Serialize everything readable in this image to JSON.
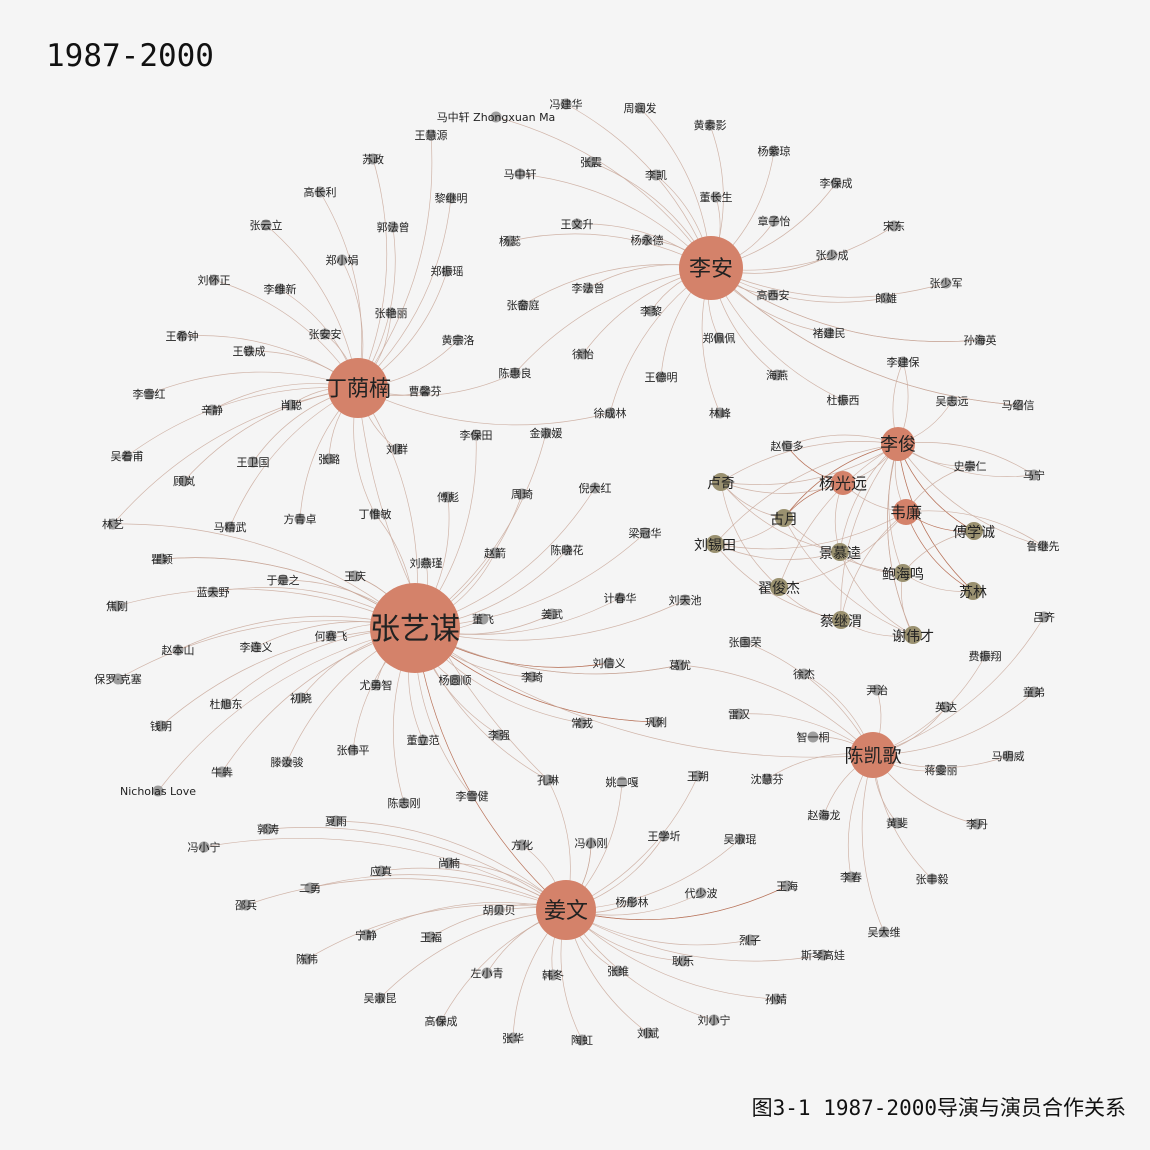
{
  "title": "1987-2000",
  "caption": "图3-1 1987-2000导演与演员合作关系",
  "colors": {
    "director": "#d4826a",
    "actor": "#9e9e9e",
    "core_actor": "#9a9170",
    "edge": "#c9a89a",
    "edge_strong": "#b9735a"
  },
  "directors": [
    {
      "id": "zym",
      "name": "张艺谋"
    },
    {
      "id": "la",
      "name": "李安"
    },
    {
      "id": "dyn",
      "name": "丁荫楠"
    },
    {
      "id": "jw",
      "name": "姜文"
    },
    {
      "id": "ckg",
      "name": "陈凯歌"
    },
    {
      "id": "lj",
      "name": "李俊"
    },
    {
      "id": "ygy",
      "name": "杨光远"
    },
    {
      "id": "wl",
      "name": "韦廉"
    }
  ],
  "nodes": [
    {
      "id": "n1",
      "name": "马中轩 Zhongxuan Ma",
      "hub": "la"
    },
    {
      "id": "n2",
      "name": "冯建华",
      "hub": "la"
    },
    {
      "id": "n3",
      "name": "周润发",
      "hub": "la"
    },
    {
      "id": "n4",
      "name": "黄素影",
      "hub": "la"
    },
    {
      "id": "n5",
      "name": "杨紫琼",
      "hub": "la"
    },
    {
      "id": "n6",
      "name": "李保成",
      "hub": "la"
    },
    {
      "id": "n7",
      "name": "宋东",
      "hub": "la"
    },
    {
      "id": "n8",
      "name": "张少军",
      "hub": "la"
    },
    {
      "id": "n9",
      "name": "张震",
      "hub": "la"
    },
    {
      "id": "n10",
      "name": "李凯",
      "hub": "la"
    },
    {
      "id": "n11",
      "name": "董长生",
      "hub": "la"
    },
    {
      "id": "n12",
      "name": "章子怡",
      "hub": "la"
    },
    {
      "id": "n13",
      "name": "张少成",
      "hub": "la"
    },
    {
      "id": "n14",
      "name": "马中轩",
      "hub": "la"
    },
    {
      "id": "n15",
      "name": "王文升",
      "hub": "la"
    },
    {
      "id": "n16",
      "name": "杨永德",
      "hub": "la"
    },
    {
      "id": "n17",
      "name": "杨蕊",
      "hub": "la"
    },
    {
      "id": "n18",
      "name": "郎雄",
      "hub": "la"
    },
    {
      "id": "n19",
      "name": "高西安",
      "hub": "la"
    },
    {
      "id": "n20",
      "name": "李法曾",
      "hub": "la"
    },
    {
      "id": "n21",
      "name": "张奤庭",
      "hub": "la"
    },
    {
      "id": "n22",
      "name": "李黎",
      "hub": "la"
    },
    {
      "id": "n23",
      "name": "褚建民",
      "hub": "la"
    },
    {
      "id": "n24",
      "name": "郑佩佩",
      "hub": "la"
    },
    {
      "id": "n25",
      "name": "徐怡",
      "hub": "la"
    },
    {
      "id": "n26",
      "name": "王德明",
      "hub": "la"
    },
    {
      "id": "n27",
      "name": "海燕",
      "hub": "la"
    },
    {
      "id": "n28",
      "name": "杜振西",
      "hub": "la"
    },
    {
      "id": "n29",
      "name": "林峰",
      "hub": "la"
    },
    {
      "id": "n30",
      "name": "徐成林",
      "hub": "la"
    },
    {
      "id": "n31",
      "name": "陈惠良",
      "hub": "la"
    },
    {
      "id": "n32",
      "name": "孙海英",
      "hub": "la"
    },
    {
      "id": "n33",
      "name": "马绍信",
      "hub": "la"
    },
    {
      "id": "n34",
      "name": "王慧源",
      "hub": "dyn"
    },
    {
      "id": "n35",
      "name": "苏政",
      "hub": "dyn"
    },
    {
      "id": "n36",
      "name": "高长利",
      "hub": "dyn"
    },
    {
      "id": "n37",
      "name": "黎继明",
      "hub": "dyn"
    },
    {
      "id": "n38",
      "name": "张云立",
      "hub": "dyn"
    },
    {
      "id": "n39",
      "name": "郭法曾",
      "hub": "dyn"
    },
    {
      "id": "n40",
      "name": "郑小娟",
      "hub": "dyn"
    },
    {
      "id": "n41",
      "name": "刘怀正",
      "hub": "dyn"
    },
    {
      "id": "n42",
      "name": "郑振瑶",
      "hub": "dyn"
    },
    {
      "id": "n43",
      "name": "李维新",
      "hub": "dyn"
    },
    {
      "id": "n44",
      "name": "张艳丽",
      "hub": "dyn"
    },
    {
      "id": "n45",
      "name": "王希钟",
      "hub": "dyn"
    },
    {
      "id": "n46",
      "name": "张安安",
      "hub": "dyn"
    },
    {
      "id": "n47",
      "name": "黄宗洛",
      "hub": "dyn"
    },
    {
      "id": "n48",
      "name": "王铁成",
      "hub": "dyn"
    },
    {
      "id": "n49",
      "name": "李雪红",
      "hub": "dyn"
    },
    {
      "id": "n50",
      "name": "辛静",
      "hub": "dyn"
    },
    {
      "id": "n51",
      "name": "肖聪",
      "hub": "dyn"
    },
    {
      "id": "n52",
      "name": "曹馨芬",
      "hub": "dyn"
    },
    {
      "id": "n53",
      "name": "吴着甫",
      "hub": "dyn"
    },
    {
      "id": "n54",
      "name": "王卫国",
      "hub": "dyn"
    },
    {
      "id": "n55",
      "name": "张璐",
      "hub": "dyn"
    },
    {
      "id": "n56",
      "name": "刘群",
      "hub": "dyn"
    },
    {
      "id": "n57",
      "name": "顾岚",
      "hub": "dyn"
    },
    {
      "id": "n58",
      "name": "林艺",
      "hub": "dyn"
    },
    {
      "id": "n59",
      "name": "方青卓",
      "hub": "dyn"
    },
    {
      "id": "n60",
      "name": "丁惟敏",
      "hub": "dyn"
    },
    {
      "id": "n61",
      "name": "马精武",
      "hub": "dyn"
    },
    {
      "id": "n62",
      "name": "瞿颖",
      "hub": "zym"
    },
    {
      "id": "n63",
      "name": "李保田",
      "hub": "zym"
    },
    {
      "id": "n64",
      "name": "金淑媛",
      "hub": "zym"
    },
    {
      "id": "n65",
      "name": "傅彪",
      "hub": "zym"
    },
    {
      "id": "n66",
      "name": "周琦",
      "hub": "zym"
    },
    {
      "id": "n67",
      "name": "倪大红",
      "hub": "zym"
    },
    {
      "id": "n68",
      "name": "赵箭",
      "hub": "zym"
    },
    {
      "id": "n69",
      "name": "陈晓花",
      "hub": "zym"
    },
    {
      "id": "n70",
      "name": "梁冠华",
      "hub": "zym"
    },
    {
      "id": "n71",
      "name": "刘燕瑾",
      "hub": "zym"
    },
    {
      "id": "n72",
      "name": "蓝天野",
      "hub": "zym"
    },
    {
      "id": "n73",
      "name": "于是之",
      "hub": "zym"
    },
    {
      "id": "n74",
      "name": "王庆",
      "hub": "zym"
    },
    {
      "id": "n75",
      "name": "计春华",
      "hub": "zym"
    },
    {
      "id": "n76",
      "name": "刘天池",
      "hub": "zym"
    },
    {
      "id": "n77",
      "name": "焦刚",
      "hub": "zym"
    },
    {
      "id": "n78",
      "name": "董飞",
      "hub": "zym"
    },
    {
      "id": "n79",
      "name": "姜武",
      "hub": "zym"
    },
    {
      "id": "n80",
      "name": "赵本山",
      "hub": "zym"
    },
    {
      "id": "n81",
      "name": "李连义",
      "hub": "zym"
    },
    {
      "id": "n82",
      "name": "何赛飞",
      "hub": "zym"
    },
    {
      "id": "n83",
      "name": "刘信义",
      "hub": "zym"
    },
    {
      "id": "n84",
      "name": "葛优",
      "hub": "zym"
    },
    {
      "id": "n85",
      "name": "保罗·克塞",
      "hub": "zym"
    },
    {
      "id": "n86",
      "name": "杜旭东",
      "hub": "zym"
    },
    {
      "id": "n87",
      "name": "初晓",
      "hub": "zym"
    },
    {
      "id": "n88",
      "name": "尤勇智",
      "hub": "zym"
    },
    {
      "id": "n89",
      "name": "杨圆顺",
      "hub": "zym"
    },
    {
      "id": "n90",
      "name": "李琦",
      "hub": "zym"
    },
    {
      "id": "n91",
      "name": "钱明",
      "hub": "zym"
    },
    {
      "id": "n92",
      "name": "常戎",
      "hub": "zym"
    },
    {
      "id": "n93",
      "name": "巩俐",
      "hub": "zym"
    },
    {
      "id": "n94",
      "name": "李强",
      "hub": "zym"
    },
    {
      "id": "n95",
      "name": "董立范",
      "hub": "zym"
    },
    {
      "id": "n96",
      "name": "张伟平",
      "hub": "zym"
    },
    {
      "id": "n97",
      "name": "滕汝骏",
      "hub": "zym"
    },
    {
      "id": "n98",
      "name": "牛犇",
      "hub": "zym"
    },
    {
      "id": "n99",
      "name": "陈志刚",
      "hub": "zym"
    },
    {
      "id": "n100",
      "name": "李雪健",
      "hub": "zym"
    },
    {
      "id": "n101",
      "name": "孔琳",
      "hub": "zym"
    },
    {
      "id": "n102",
      "name": "Nicholas Love",
      "hub": "zym"
    },
    {
      "id": "n103",
      "name": "冯小宁",
      "hub": "jw"
    },
    {
      "id": "n104",
      "name": "郭涛",
      "hub": "jw"
    },
    {
      "id": "n105",
      "name": "夏雨",
      "hub": "jw"
    },
    {
      "id": "n106",
      "name": "应真",
      "hub": "jw"
    },
    {
      "id": "n107",
      "name": "邵兵",
      "hub": "jw"
    },
    {
      "id": "n108",
      "name": "二勇",
      "hub": "jw"
    },
    {
      "id": "n109",
      "name": "尚楠",
      "hub": "jw"
    },
    {
      "id": "n110",
      "name": "宁静",
      "hub": "jw"
    },
    {
      "id": "n111",
      "name": "陈伟",
      "hub": "jw"
    },
    {
      "id": "n112",
      "name": "王福",
      "hub": "jw"
    },
    {
      "id": "n113",
      "name": "胡贝贝",
      "hub": "jw"
    },
    {
      "id": "n114",
      "name": "吴淑昆",
      "hub": "jw"
    },
    {
      "id": "n115",
      "name": "左小青",
      "hub": "jw"
    },
    {
      "id": "n116",
      "name": "高保成",
      "hub": "jw"
    },
    {
      "id": "n117",
      "name": "韩冬",
      "hub": "jw"
    },
    {
      "id": "n118",
      "name": "张华",
      "hub": "jw"
    },
    {
      "id": "n119",
      "name": "陶虹",
      "hub": "jw"
    },
    {
      "id": "n120",
      "name": "张维",
      "hub": "jw"
    },
    {
      "id": "n121",
      "name": "刘斌",
      "hub": "jw"
    },
    {
      "id": "n122",
      "name": "耿乐",
      "hub": "jw"
    },
    {
      "id": "n123",
      "name": "刘小宁",
      "hub": "jw"
    },
    {
      "id": "n124",
      "name": "孙婧",
      "hub": "jw"
    },
    {
      "id": "n125",
      "name": "烈子",
      "hub": "jw"
    },
    {
      "id": "n126",
      "name": "斯琴高娃",
      "hub": "jw"
    },
    {
      "id": "n127",
      "name": "代少波",
      "hub": "jw"
    },
    {
      "id": "n128",
      "name": "杨彤林",
      "hub": "jw"
    },
    {
      "id": "n129",
      "name": "方化",
      "hub": "jw"
    },
    {
      "id": "n130",
      "name": "冯小刚",
      "hub": "jw"
    },
    {
      "id": "n131",
      "name": "姚二嘎",
      "hub": "jw"
    },
    {
      "id": "n132",
      "name": "王学圻",
      "hub": "jw"
    },
    {
      "id": "n133",
      "name": "吴淑琨",
      "hub": "jw"
    },
    {
      "id": "n134",
      "name": "王朔",
      "hub": "jw"
    },
    {
      "id": "n135",
      "name": "王海",
      "hub": "jw"
    },
    {
      "id": "n136",
      "name": "吕齐",
      "hub": "ckg"
    },
    {
      "id": "n137",
      "name": "费振翔",
      "hub": "ckg"
    },
    {
      "id": "n138",
      "name": "尹治",
      "hub": "ckg"
    },
    {
      "id": "n139",
      "name": "英达",
      "hub": "ckg"
    },
    {
      "id": "n140",
      "name": "童弟",
      "hub": "ckg"
    },
    {
      "id": "n141",
      "name": "马明威",
      "hub": "ckg"
    },
    {
      "id": "n142",
      "name": "蒋雯丽",
      "hub": "ckg"
    },
    {
      "id": "n143",
      "name": "李丹",
      "hub": "ckg"
    },
    {
      "id": "n144",
      "name": "黄斐",
      "hub": "ckg"
    },
    {
      "id": "n145",
      "name": "赵海龙",
      "hub": "ckg"
    },
    {
      "id": "n146",
      "name": "张丰毅",
      "hub": "ckg"
    },
    {
      "id": "n147",
      "name": "李春",
      "hub": "ckg"
    },
    {
      "id": "n148",
      "name": "吴大维",
      "hub": "ckg"
    },
    {
      "id": "n149",
      "name": "沈慧芬",
      "hub": "ckg"
    },
    {
      "id": "n150",
      "name": "智一桐",
      "hub": "ckg"
    },
    {
      "id": "n151",
      "name": "雷汉",
      "hub": "ckg"
    },
    {
      "id": "n152",
      "name": "徐杰",
      "hub": "ckg"
    },
    {
      "id": "n153",
      "name": "张国荣",
      "hub": "ckg"
    },
    {
      "id": "n154",
      "name": "李建保",
      "hub": "lj"
    },
    {
      "id": "n155",
      "name": "吴志远",
      "hub": "lj"
    },
    {
      "id": "n156",
      "name": "赵恒多",
      "hub": "lj"
    },
    {
      "id": "n157",
      "name": "史崇仁",
      "hub": "lj"
    },
    {
      "id": "n158",
      "name": "马宁",
      "hub": "lj"
    },
    {
      "id": "n159",
      "name": "鲁继先",
      "hub": "lj"
    },
    {
      "id": "n160",
      "name": "卢奇",
      "hub": "lj"
    },
    {
      "id": "n161",
      "name": "古月",
      "hub": "lj"
    },
    {
      "id": "n162",
      "name": "傅学诚",
      "hub": "lj"
    },
    {
      "id": "n163",
      "name": "刘锡田",
      "hub": "lj"
    },
    {
      "id": "n164",
      "name": "景慕逵",
      "hub": "lj"
    },
    {
      "id": "n165",
      "name": "鲍海鸣",
      "hub": "lj"
    },
    {
      "id": "n166",
      "name": "苏林",
      "hub": "lj"
    },
    {
      "id": "n167",
      "name": "翟俊杰",
      "hub": "lj"
    },
    {
      "id": "n168",
      "name": "蔡继渭",
      "hub": "lj"
    },
    {
      "id": "n169",
      "name": "谢伟才",
      "hub": "lj"
    }
  ]
}
